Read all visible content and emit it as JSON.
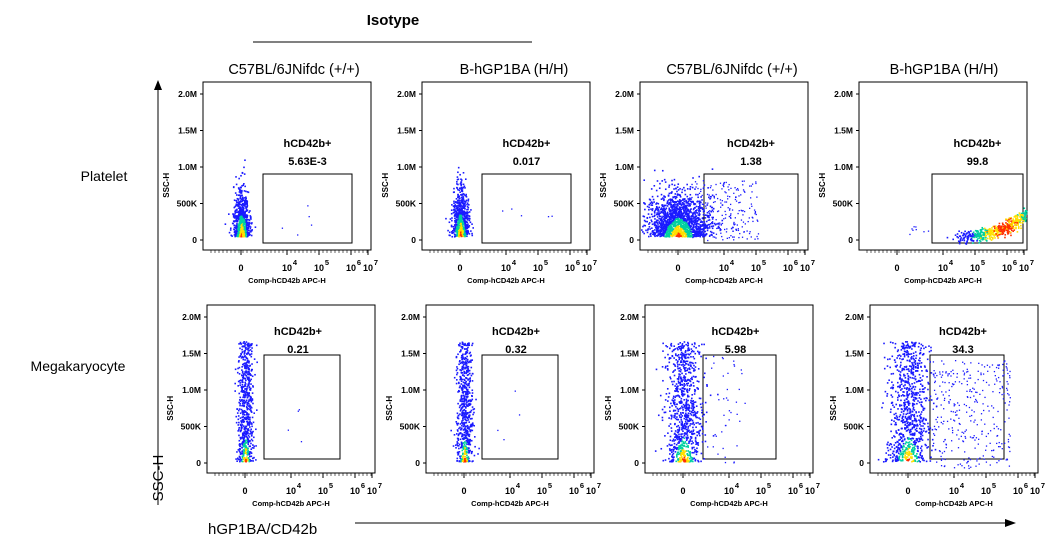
{
  "header": {
    "isotype_label": "Isotype",
    "column_labels": [
      "C57BL/6JNifdc (+/+)",
      "B-hGP1BA (H/H)",
      "C57BL/6JNifdc (+/+)",
      "B-hGP1BA (H/H)"
    ]
  },
  "rows": {
    "labels": [
      "Platelet",
      "Megakaryocyte"
    ]
  },
  "axes": {
    "global_y_label": "SSC-H",
    "global_x_label": "hGP1BA/CD42b",
    "panel_x_label": "Comp-hCD42b APC-H",
    "panel_y_label": "SSC-H",
    "y_ticks": [
      "0",
      "500K",
      "1.0M",
      "1.5M",
      "2.0M"
    ],
    "x_ticks": [
      "0",
      "10",
      "10",
      "10",
      "10"
    ],
    "x_tick_exponents": [
      "",
      "4",
      "5",
      "6",
      "7"
    ]
  },
  "colors": {
    "density_low": "#1a1aff",
    "density_mid": "#00d0a0",
    "density_high": "#ffe000",
    "density_peak": "#ff3000"
  },
  "chart_data": [
    {
      "type": "scatter",
      "row": "Platelet",
      "column": "C57BL/6JNifdc (+/+)",
      "gate": "hCD42b+",
      "gate_value": "5.63E-3",
      "value": 0.00563,
      "population": "narrow-low-cluster"
    },
    {
      "type": "scatter",
      "row": "Platelet",
      "column": "B-hGP1BA (H/H)",
      "gate": "hCD42b+",
      "gate_value": "0.017",
      "value": 0.017,
      "population": "narrow-low-cluster"
    },
    {
      "type": "scatter",
      "row": "Platelet",
      "column": "C57BL/6JNifdc (+/+)",
      "gate": "hCD42b+",
      "gate_value": "1.38",
      "value": 1.38,
      "population": "broad-low-cluster"
    },
    {
      "type": "scatter",
      "row": "Platelet",
      "column": "B-hGP1BA (H/H)",
      "gate": "hCD42b+",
      "gate_value": "99.8",
      "value": 99.8,
      "population": "shifted-curve"
    },
    {
      "type": "scatter",
      "row": "Megakaryocyte",
      "column": "C57BL/6JNifdc (+/+)",
      "gate": "hCD42b+",
      "gate_value": "0.21",
      "value": 0.21,
      "population": "tall-narrow-column"
    },
    {
      "type": "scatter",
      "row": "Megakaryocyte",
      "column": "B-hGP1BA (H/H)",
      "gate": "hCD42b+",
      "gate_value": "0.32",
      "value": 0.32,
      "population": "tall-narrow-column"
    },
    {
      "type": "scatter",
      "row": "Megakaryocyte",
      "column": "C57BL/6JNifdc (+/+)",
      "gate": "hCD42b+",
      "gate_value": "5.98",
      "value": 5.98,
      "population": "tall-wide-column"
    },
    {
      "type": "scatter",
      "row": "Megakaryocyte",
      "column": "B-hGP1BA (H/H)",
      "gate": "hCD42b+",
      "gate_value": "34.3",
      "value": 34.3,
      "population": "spread-with-positive"
    }
  ]
}
